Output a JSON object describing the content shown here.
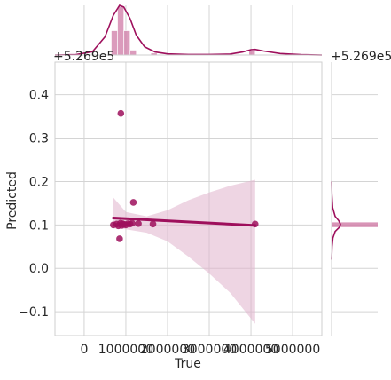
{
  "chart_data": {
    "type": "scatter",
    "subtype": "jointplot-regression",
    "xlabel": "True",
    "ylabel": "Predicted",
    "x_offset_label": "+5.269e5",
    "y_offset_label": "+5.269e5",
    "xlim": [
      -700000,
      5700000
    ],
    "ylim": [
      -0.155,
      0.475
    ],
    "x_ticks": [
      0,
      1000000,
      2000000,
      3000000,
      4000000,
      5000000
    ],
    "x_tick_labels": [
      "0",
      "1000000",
      "2000000",
      "3000000",
      "4000000",
      "5000000"
    ],
    "y_ticks": [
      -0.1,
      0.0,
      0.1,
      0.2,
      0.3,
      0.4
    ],
    "y_tick_labels": [
      "−0.1",
      "0.0",
      "0.1",
      "0.2",
      "0.3",
      "0.4"
    ],
    "grid": true,
    "color": "#9e0f5c",
    "band_color": "#e0b3cc",
    "points": [
      {
        "x": 700000,
        "y": 0.1
      },
      {
        "x": 780000,
        "y": 0.102
      },
      {
        "x": 820000,
        "y": 0.098
      },
      {
        "x": 850000,
        "y": 0.068
      },
      {
        "x": 870000,
        "y": 0.104
      },
      {
        "x": 880000,
        "y": 0.357
      },
      {
        "x": 900000,
        "y": 0.099
      },
      {
        "x": 920000,
        "y": 0.103
      },
      {
        "x": 950000,
        "y": 0.101
      },
      {
        "x": 1000000,
        "y": 0.1
      },
      {
        "x": 1050000,
        "y": 0.103
      },
      {
        "x": 1100000,
        "y": 0.102
      },
      {
        "x": 1150000,
        "y": 0.104
      },
      {
        "x": 1180000,
        "y": 0.152
      },
      {
        "x": 1300000,
        "y": 0.103
      },
      {
        "x": 1650000,
        "y": 0.102
      },
      {
        "x": 4100000,
        "y": 0.102
      }
    ],
    "regression": {
      "x": [
        700000,
        4100000
      ],
      "y": [
        0.116,
        0.099
      ]
    },
    "ci_band": {
      "x": [
        700000,
        1000000,
        1500000,
        2000000,
        2500000,
        3000000,
        3500000,
        4100000
      ],
      "lower": [
        0.092,
        0.09,
        0.082,
        0.062,
        0.027,
        -0.012,
        -0.056,
        -0.128
      ],
      "upper": [
        0.163,
        0.13,
        0.12,
        0.134,
        0.157,
        0.175,
        0.19,
        0.204
      ]
    },
    "top_marginal": {
      "type": "histogram+kde",
      "bins": [
        {
          "x0": 650000,
          "x1": 800000,
          "count": 5
        },
        {
          "x0": 800000,
          "x1": 950000,
          "count": 10
        },
        {
          "x0": 950000,
          "x1": 1100000,
          "count": 5
        },
        {
          "x0": 1100000,
          "x1": 1250000,
          "count": 1
        },
        {
          "x0": 1600000,
          "x1": 1750000,
          "count": 0.4
        },
        {
          "x0": 3950000,
          "x1": 4100000,
          "count": 0.8
        }
      ],
      "kde_x": [
        -700000,
        -200000,
        200000,
        500000,
        700000,
        850000,
        950000,
        1100000,
        1250000,
        1450000,
        1700000,
        2000000,
        2500000,
        3000000,
        3500000,
        3800000,
        4000000,
        4100000,
        4300000,
        4700000,
        5200000,
        5700000
      ],
      "kde_y": [
        0,
        0.02,
        0.2,
        1.1,
        2.4,
        3.0,
        2.9,
        2.2,
        1.2,
        0.5,
        0.18,
        0.07,
        0.03,
        0.03,
        0.06,
        0.18,
        0.32,
        0.34,
        0.24,
        0.09,
        0.02,
        0
      ]
    },
    "right_marginal": {
      "type": "histogram+kde",
      "bins": [
        {
          "y0": 0.095,
          "y1": 0.106,
          "count": 16
        },
        {
          "y0": 0.352,
          "y1": 0.362,
          "count": 0.3
        }
      ],
      "kde_y": [
        0.02,
        0.05,
        0.07,
        0.085,
        0.095,
        0.102,
        0.11,
        0.12,
        0.14,
        0.17,
        0.2
      ],
      "kde_x": [
        0,
        0.05,
        0.15,
        0.4,
        0.9,
        1.0,
        0.8,
        0.4,
        0.12,
        0.03,
        0
      ]
    }
  }
}
